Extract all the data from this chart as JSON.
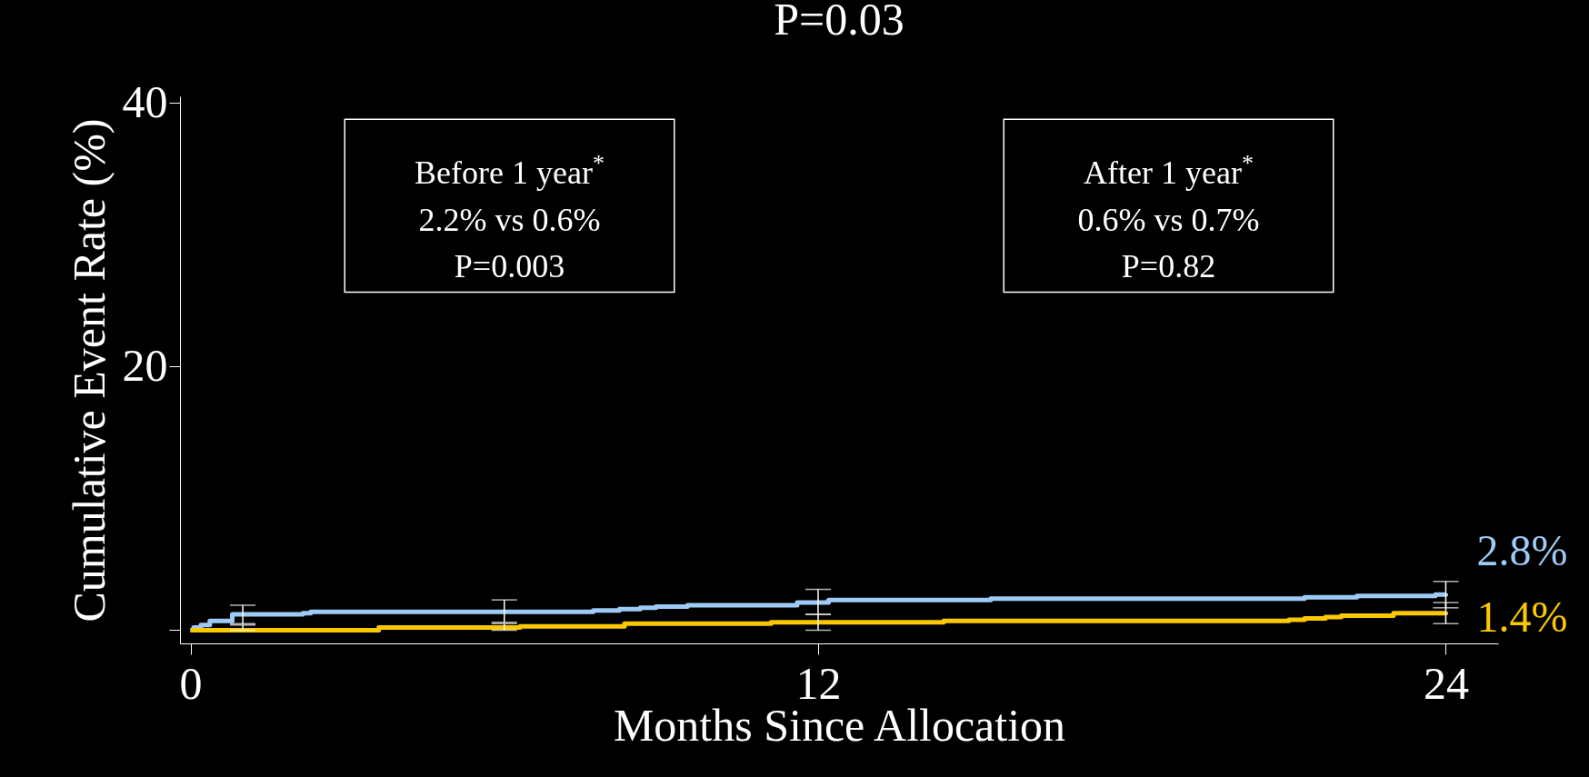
{
  "chart_data": {
    "type": "step",
    "title": "P=0.03",
    "xlabel": "Months Since Allocation",
    "ylabel": "Cumulative Event Rate (%)",
    "xlim": [
      -0.2,
      25
    ],
    "xticks": [
      0,
      12,
      24
    ],
    "ylim": [
      -1,
      40.5
    ],
    "yticks": [
      {
        "value": 0,
        "label": null
      },
      20,
      40
    ],
    "grid": false,
    "series": [
      {
        "color": "#9ecbf5",
        "x": [
          0,
          0.06,
          0.2,
          0.37,
          0.8,
          1,
          2.15,
          2.3,
          6,
          7.7,
          8.2,
          8.6,
          8.9,
          9.5,
          11.6,
          12,
          12.2,
          15.3,
          21.3,
          22.3,
          23.8,
          24
        ],
        "values": [
          0,
          0.2,
          0.4,
          0.7,
          1.2,
          1.2,
          1.3,
          1.4,
          1.4,
          1.5,
          1.6,
          1.7,
          1.8,
          1.9,
          2.1,
          2.1,
          2.3,
          2.4,
          2.5,
          2.6,
          2.7,
          2.8
        ],
        "errors": [
          null,
          null,
          null,
          null,
          null,
          [
            0.5,
            1.9
          ],
          null,
          null,
          [
            0.6,
            2.3
          ],
          null,
          null,
          null,
          null,
          null,
          null,
          [
            1.2,
            3.1
          ],
          null,
          null,
          null,
          null,
          null,
          [
            1.7,
            3.7
          ]
        ]
      },
      {
        "color": "#fcc800",
        "x": [
          0,
          1,
          3.6,
          6,
          6.3,
          8.3,
          11.1,
          12,
          14.4,
          21,
          21.3,
          21.7,
          22,
          23,
          24
        ],
        "values": [
          0,
          0,
          0.2,
          0.2,
          0.3,
          0.5,
          0.6,
          0.6,
          0.7,
          0.8,
          0.9,
          1,
          1.1,
          1.3,
          1.4
        ],
        "errors": [
          null,
          [
            0,
            0.4
          ],
          null,
          [
            0,
            0.5
          ],
          null,
          null,
          null,
          [
            0,
            1.2
          ],
          null,
          null,
          null,
          null,
          null,
          null,
          [
            0.5,
            2.1
          ]
        ]
      }
    ],
    "annotations": [
      "Before 1 year$^{*}$",
      "2.2% vs 0.6%",
      "P=0.003",
      "After 1 year$^{*}$",
      "0.6% vs 0.7%",
      "P=0.82",
      {
        "text": "2.8%",
        "x": 24,
        "y": 2.8
      },
      {
        "text": "1.4%",
        "x": 24,
        "y": 1.4
      }
    ]
  }
}
